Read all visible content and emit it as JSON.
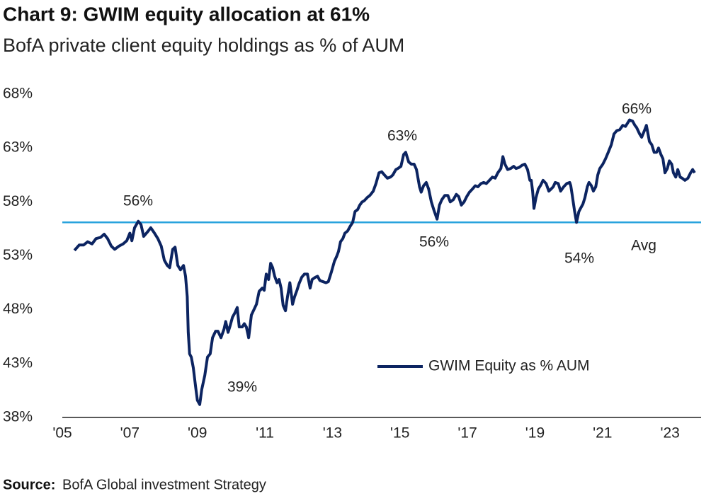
{
  "chart_data": {
    "type": "line",
    "title": "Chart 9: GWIM equity allocation at 61%",
    "subtitle": "BofA private client equity holdings as % of AUM",
    "source_label": "Source:",
    "source": "BofA Global investment Strategy",
    "annotations": [
      "56%",
      "39%",
      "63%",
      "56%",
      "54%",
      "66%",
      "Avg"
    ],
    "average": 56.1,
    "average_color": "#29a3dd",
    "legend": "bottom-right",
    "grid": false,
    "xlim": [
      2005,
      2023.92
    ],
    "ylim": [
      38,
      68
    ],
    "xticks": [
      {
        "value": 2005,
        "label": "'05"
      },
      {
        "value": 2007,
        "label": "'07"
      },
      {
        "value": 2009,
        "label": "'09"
      },
      {
        "value": 2011,
        "label": "'11"
      },
      {
        "value": 2013,
        "label": "'13"
      },
      {
        "value": 2015,
        "label": "'15"
      },
      {
        "value": 2017,
        "label": "'17"
      },
      {
        "value": 2019,
        "label": "'19"
      },
      {
        "value": 2021,
        "label": "'21"
      },
      {
        "value": 2023,
        "label": "'23"
      }
    ],
    "yticks": [
      {
        "value": 38,
        "label": "38%"
      },
      {
        "value": 43,
        "label": "43%"
      },
      {
        "value": 48,
        "label": "48%"
      },
      {
        "value": 53,
        "label": "53%"
      },
      {
        "value": 58,
        "label": "58%"
      },
      {
        "value": 63,
        "label": "63%"
      },
      {
        "value": 68,
        "label": "68%"
      }
    ],
    "x": [
      2005.36,
      2005.5,
      2005.63,
      2005.75,
      2005.88,
      2006.0,
      2006.13,
      2006.24,
      2006.34,
      2006.45,
      2006.55,
      2006.68,
      2006.8,
      2006.91,
      2007.0,
      2007.06,
      2007.14,
      2007.25,
      2007.33,
      2007.41,
      2007.52,
      2007.62,
      2007.73,
      2007.83,
      2007.93,
      2008.02,
      2008.11,
      2008.18,
      2008.27,
      2008.34,
      2008.42,
      2008.5,
      2008.59,
      2008.65,
      2008.7,
      2008.73,
      2008.77,
      2008.82,
      2008.88,
      2008.95,
      2009.0,
      2009.07,
      2009.13,
      2009.22,
      2009.3,
      2009.38,
      2009.45,
      2009.54,
      2009.61,
      2009.7,
      2009.79,
      2009.84,
      2009.91,
      2009.97,
      2010.04,
      2010.11,
      2010.18,
      2010.24,
      2010.33,
      2010.39,
      2010.45,
      2010.52,
      2010.6,
      2010.66,
      2010.75,
      2010.83,
      2010.92,
      2010.98,
      2011.04,
      2011.11,
      2011.17,
      2011.23,
      2011.29,
      2011.36,
      2011.42,
      2011.48,
      2011.54,
      2011.61,
      2011.67,
      2011.74,
      2011.77,
      2011.82,
      2011.88,
      2011.95,
      2012.01,
      2012.09,
      2012.17,
      2012.26,
      2012.34,
      2012.4,
      2012.49,
      2012.56,
      2012.63,
      2012.72,
      2012.81,
      2012.88,
      2012.97,
      2013.06,
      2013.12,
      2013.18,
      2013.24,
      2013.31,
      2013.37,
      2013.45,
      2013.52,
      2013.6,
      2013.67,
      2013.75,
      2013.81,
      2013.88,
      2013.94,
      2014.03,
      2014.11,
      2014.21,
      2014.29,
      2014.38,
      2014.46,
      2014.54,
      2014.63,
      2014.72,
      2014.79,
      2014.88,
      2014.94,
      2015.03,
      2015.11,
      2015.17,
      2015.26,
      2015.34,
      2015.42,
      2015.49,
      2015.58,
      2015.63,
      2015.7,
      2015.78,
      2015.85,
      2015.93,
      2016.01,
      2016.1,
      2016.17,
      2016.24,
      2016.33,
      2016.42,
      2016.49,
      2016.58,
      2016.67,
      2016.74,
      2016.82,
      2016.9,
      2016.98,
      2017.06,
      2017.15,
      2017.23,
      2017.31,
      2017.4,
      2017.48,
      2017.56,
      2017.65,
      2017.74,
      2017.82,
      2017.9,
      2017.99,
      2018.05,
      2018.11,
      2018.19,
      2018.28,
      2018.37,
      2018.44,
      2018.53,
      2018.62,
      2018.7,
      2018.78,
      2018.85,
      2018.89,
      2018.93,
      2018.97,
      2019.03,
      2019.1,
      2019.16,
      2019.24,
      2019.33,
      2019.41,
      2019.48,
      2019.54,
      2019.6,
      2019.69,
      2019.76,
      2019.85,
      2019.94,
      2020.03,
      2020.06,
      2020.1,
      2020.17,
      2020.23,
      2020.3,
      2020.35,
      2020.42,
      2020.48,
      2020.55,
      2020.6,
      2020.67,
      2020.73,
      2020.8,
      2020.86,
      2020.92,
      2021.01,
      2021.09,
      2021.17,
      2021.26,
      2021.34,
      2021.42,
      2021.51,
      2021.6,
      2021.68,
      2021.74,
      2021.8,
      2021.89,
      2021.96,
      2022.01,
      2022.1,
      2022.16,
      2022.24,
      2022.3,
      2022.39,
      2022.46,
      2022.53,
      2022.6,
      2022.66,
      2022.73,
      2022.79,
      2022.85,
      2022.92,
      2022.98,
      2023.05,
      2023.1,
      2023.17,
      2023.23,
      2023.3,
      2023.36,
      2023.44,
      2023.53,
      2023.61,
      2023.67,
      2023.73
    ],
    "series": [
      {
        "name": "GWIM Equity as % AUM",
        "color": "#0c2461",
        "values": [
          53.5,
          54.0,
          54.0,
          54.3,
          54.1,
          54.6,
          54.7,
          55.0,
          54.6,
          53.9,
          53.6,
          53.9,
          54.1,
          54.4,
          55.1,
          54.4,
          55.6,
          56.2,
          55.9,
          54.8,
          55.2,
          55.6,
          55.1,
          54.6,
          53.9,
          52.6,
          52.1,
          51.9,
          53.6,
          53.8,
          52.1,
          51.7,
          52.1,
          51.1,
          49.2,
          45.9,
          43.9,
          43.6,
          42.6,
          40.8,
          39.6,
          39.2,
          40.6,
          41.9,
          43.6,
          43.9,
          45.4,
          46.0,
          46.0,
          45.4,
          46.2,
          46.9,
          45.9,
          46.5,
          47.3,
          47.7,
          48.2,
          46.4,
          46.4,
          46.7,
          46.4,
          45.4,
          47.5,
          47.9,
          48.5,
          49.7,
          50.0,
          49.8,
          51.3,
          50.8,
          52.3,
          51.9,
          51.1,
          50.5,
          50.8,
          50.0,
          48.4,
          47.9,
          49.2,
          50.5,
          49.8,
          48.5,
          49.2,
          49.8,
          50.4,
          51.0,
          51.3,
          51.3,
          50.0,
          50.8,
          51.0,
          51.1,
          50.7,
          50.6,
          50.5,
          50.6,
          51.5,
          52.5,
          52.9,
          53.4,
          54.3,
          54.6,
          55.1,
          55.3,
          55.7,
          56.1,
          57.1,
          57.3,
          57.7,
          58.0,
          58.1,
          58.4,
          58.6,
          59.0,
          59.7,
          60.7,
          60.8,
          60.5,
          60.2,
          60.3,
          60.5,
          61.0,
          61.1,
          61.3,
          62.4,
          62.6,
          61.7,
          61.5,
          61.5,
          61.0,
          59.4,
          58.9,
          59.5,
          59.8,
          59.2,
          58.0,
          57.2,
          56.4,
          57.7,
          58.2,
          58.6,
          58.6,
          58.0,
          58.2,
          58.7,
          58.5,
          57.7,
          58.0,
          58.5,
          58.9,
          59.2,
          59.5,
          59.4,
          59.7,
          59.8,
          59.7,
          60.0,
          60.3,
          60.2,
          60.7,
          61.1,
          62.2,
          61.5,
          61.0,
          61.1,
          61.3,
          61.1,
          61.2,
          61.4,
          61.5,
          61.0,
          60.0,
          60.0,
          59.0,
          57.4,
          58.4,
          59.2,
          59.5,
          60.0,
          59.7,
          59.0,
          59.2,
          59.4,
          59.8,
          59.7,
          59.0,
          59.4,
          59.7,
          59.8,
          59.5,
          58.7,
          57.2,
          56.1,
          57.1,
          57.4,
          57.8,
          58.4,
          59.4,
          59.8,
          59.5,
          59.0,
          59.4,
          60.5,
          61.1,
          61.5,
          62.0,
          62.6,
          63.3,
          64.3,
          64.6,
          64.7,
          65.1,
          65.0,
          65.3,
          65.6,
          65.5,
          65.1,
          64.9,
          64.3,
          64.0,
          64.6,
          65.1,
          63.6,
          63.3,
          62.6,
          62.6,
          63.0,
          62.4,
          62.0,
          60.7,
          61.1,
          61.8,
          61.5,
          60.7,
          60.3,
          61.0,
          60.3,
          60.2,
          60.0,
          60.2,
          60.7,
          61.0,
          60.7
        ]
      }
    ]
  }
}
